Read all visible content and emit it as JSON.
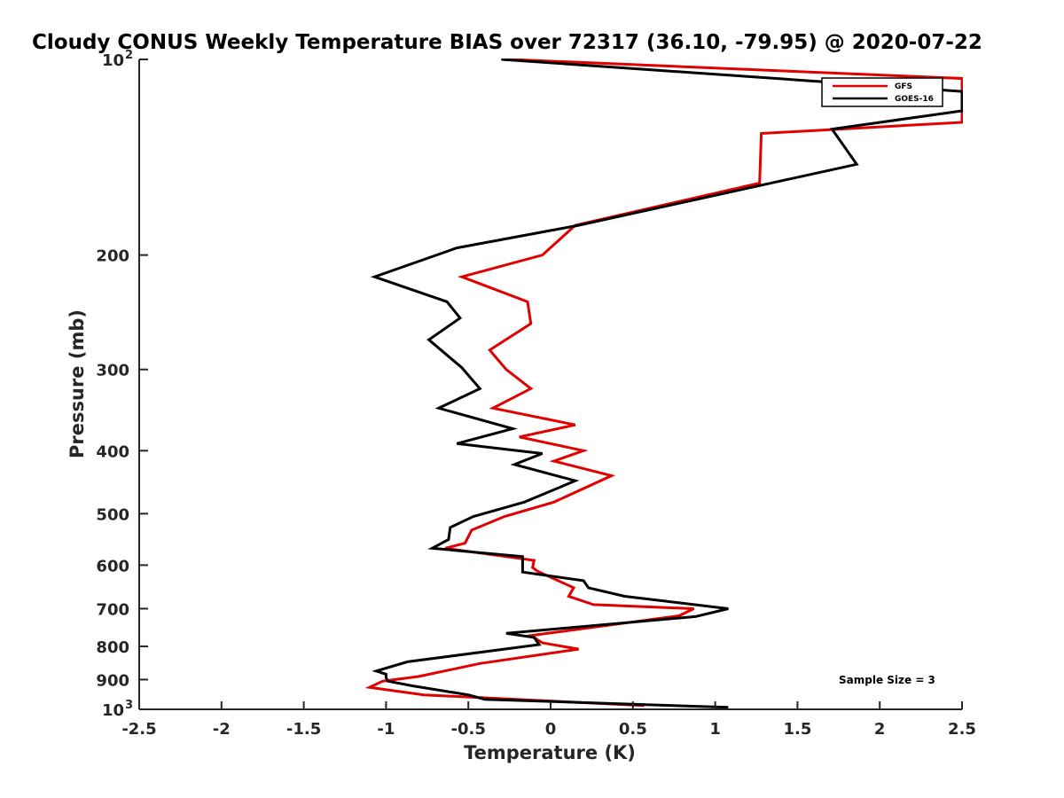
{
  "chart_data": {
    "type": "line",
    "title": "Cloudy CONUS Weekly Temperature BIAS over 72317 (36.10, -79.95) @ 2020-07-22",
    "xlabel": "Temperature (K)",
    "ylabel": "Pressure (mb)",
    "xlim": [
      -2.5,
      2.5
    ],
    "ylim": [
      100,
      1000
    ],
    "y_scale": "log",
    "y_reversed": true,
    "grid": false,
    "legend_position": "top-right",
    "x_ticks": [
      {
        "value": -2.5,
        "label": "-2.5"
      },
      {
        "value": -2,
        "label": "-2"
      },
      {
        "value": -1.5,
        "label": "-1.5"
      },
      {
        "value": -1,
        "label": "-1"
      },
      {
        "value": -0.5,
        "label": "-0.5"
      },
      {
        "value": 0,
        "label": "0"
      },
      {
        "value": 0.5,
        "label": "0.5"
      },
      {
        "value": 1,
        "label": "1"
      },
      {
        "value": 1.5,
        "label": "1.5"
      },
      {
        "value": 2,
        "label": "2"
      },
      {
        "value": 2.5,
        "label": "2.5"
      }
    ],
    "y_ticks": [
      {
        "value": 100,
        "label": "10",
        "sup": "2"
      },
      {
        "value": 200,
        "label": "200"
      },
      {
        "value": 300,
        "label": "300"
      },
      {
        "value": 400,
        "label": "400"
      },
      {
        "value": 500,
        "label": "500"
      },
      {
        "value": 600,
        "label": "600"
      },
      {
        "value": 700,
        "label": "700"
      },
      {
        "value": 800,
        "label": "800"
      },
      {
        "value": 900,
        "label": "900"
      },
      {
        "value": 1000,
        "label": "10",
        "sup": "3"
      }
    ],
    "annotation": "Sample Size = 3",
    "series": [
      {
        "name": "GFS",
        "color": "#e00000",
        "points": [
          [
            -0.25,
            100
          ],
          [
            2.5,
            107
          ],
          [
            2.5,
            125
          ],
          [
            1.28,
            130
          ],
          [
            1.27,
            155
          ],
          [
            0.15,
            180
          ],
          [
            -0.05,
            200
          ],
          [
            -0.54,
            216
          ],
          [
            -0.14,
            236
          ],
          [
            -0.12,
            255
          ],
          [
            -0.37,
            280
          ],
          [
            -0.27,
            300
          ],
          [
            -0.12,
            321
          ],
          [
            -0.35,
            344
          ],
          [
            0.15,
            365
          ],
          [
            -0.19,
            381
          ],
          [
            0.2,
            400
          ],
          [
            0.02,
            415
          ],
          [
            0.37,
            437
          ],
          [
            0.02,
            480
          ],
          [
            -0.28,
            505
          ],
          [
            -0.48,
            530
          ],
          [
            -0.52,
            555
          ],
          [
            -0.64,
            565
          ],
          [
            -0.1,
            590
          ],
          [
            -0.11,
            605
          ],
          [
            -0.08,
            613
          ],
          [
            0.14,
            650
          ],
          [
            0.11,
            670
          ],
          [
            0.26,
            690
          ],
          [
            0.87,
            700
          ],
          [
            0.78,
            718
          ],
          [
            -0.12,
            770
          ],
          [
            -0.05,
            790
          ],
          [
            0.17,
            808
          ],
          [
            -0.43,
            850
          ],
          [
            -0.8,
            890
          ],
          [
            -1.02,
            905
          ],
          [
            -1.1,
            925
          ],
          [
            -0.77,
            950
          ],
          [
            0.57,
            987
          ]
        ]
      },
      {
        "name": "GOES-16",
        "color": "#000000",
        "points": [
          [
            -0.3,
            100
          ],
          [
            2.5,
            112
          ],
          [
            2.5,
            120
          ],
          [
            1.71,
            128
          ],
          [
            1.86,
            145
          ],
          [
            0.17,
            180
          ],
          [
            -0.57,
            195
          ],
          [
            -1.07,
            216
          ],
          [
            -0.63,
            236
          ],
          [
            -0.55,
            250
          ],
          [
            -0.74,
            270
          ],
          [
            -0.54,
            298
          ],
          [
            -0.43,
            321
          ],
          [
            -0.68,
            344
          ],
          [
            -0.23,
            370
          ],
          [
            -0.57,
            390
          ],
          [
            -0.05,
            404
          ],
          [
            -0.22,
            420
          ],
          [
            0.15,
            445
          ],
          [
            -0.16,
            480
          ],
          [
            -0.47,
            505
          ],
          [
            -0.61,
            525
          ],
          [
            -0.62,
            548
          ],
          [
            -0.72,
            565
          ],
          [
            -0.17,
            582
          ],
          [
            -0.17,
            615
          ],
          [
            0.2,
            634
          ],
          [
            0.23,
            650
          ],
          [
            0.45,
            670
          ],
          [
            1.08,
            700
          ],
          [
            0.88,
            720
          ],
          [
            -0.27,
            764
          ],
          [
            -0.1,
            775
          ],
          [
            -0.07,
            795
          ],
          [
            -0.87,
            845
          ],
          [
            -1.06,
            873
          ],
          [
            -1.0,
            883
          ],
          [
            -1.0,
            893
          ],
          [
            -0.99,
            905
          ],
          [
            -0.84,
            920
          ],
          [
            -0.5,
            950
          ],
          [
            -0.4,
            965
          ],
          [
            1.08,
            993
          ]
        ]
      }
    ]
  }
}
